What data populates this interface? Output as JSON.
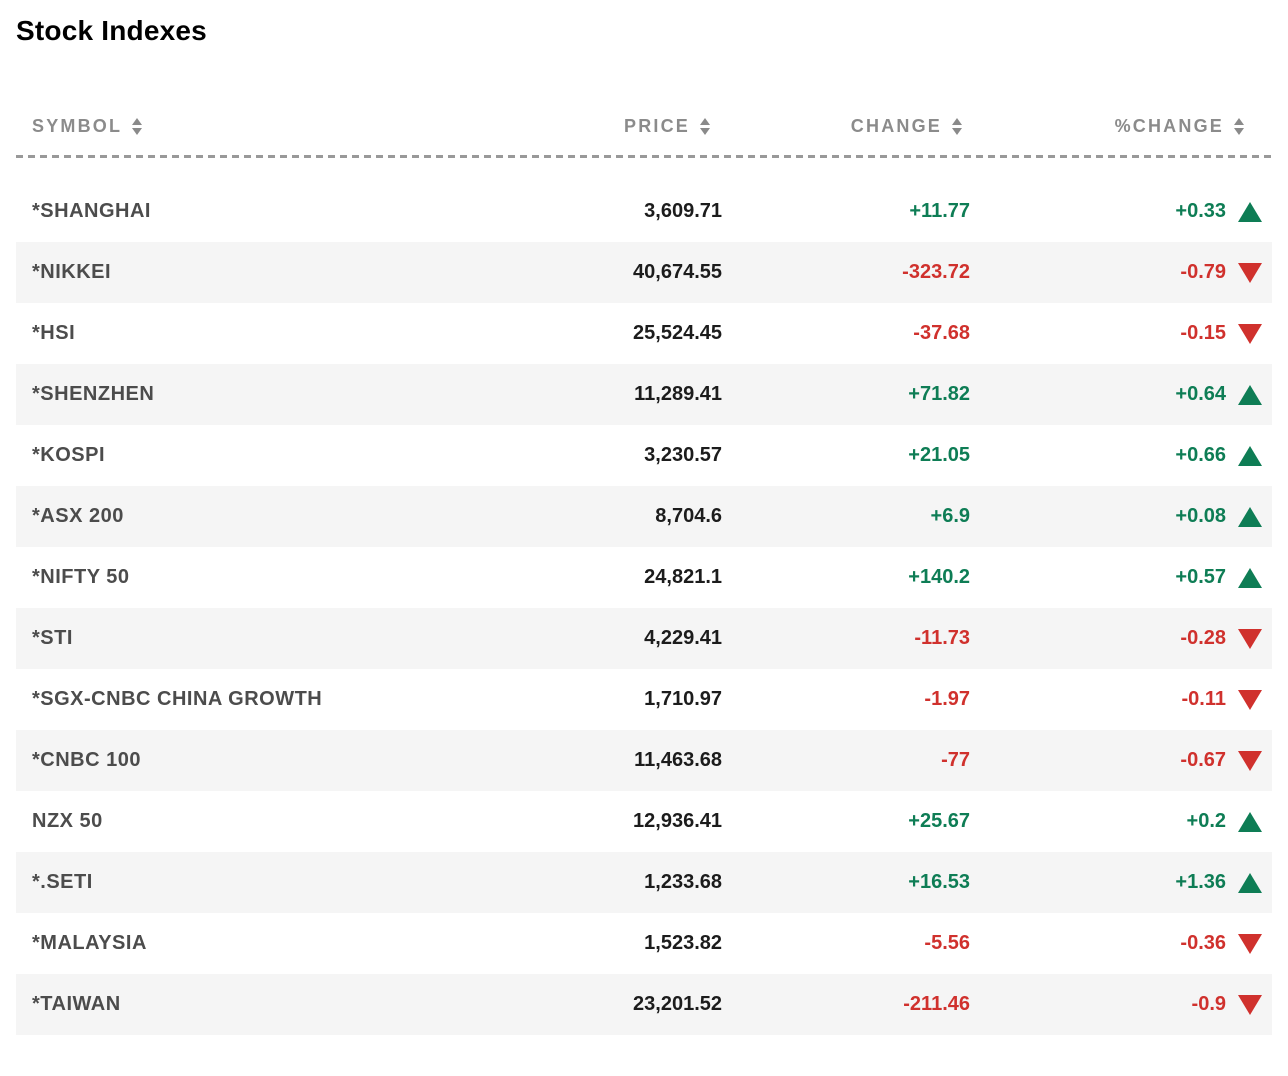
{
  "title": "Stock Indexes",
  "colors": {
    "positive": "#0e7d55",
    "negative": "#d0312d",
    "header_text": "#8b8b8b",
    "symbol_text": "#4c4c4c",
    "price_text": "#1c1c1c",
    "alt_row_bg": "#f5f5f5",
    "divider": "#999999"
  },
  "table": {
    "columns": [
      {
        "label": "SYMBOL"
      },
      {
        "label": "PRICE"
      },
      {
        "label": "CHANGE"
      },
      {
        "label": "%CHANGE"
      }
    ],
    "rows": [
      {
        "symbol": "*SHANGHAI",
        "price": "3,609.71",
        "change": "+11.77",
        "pct_change": "+0.33",
        "direction": "up"
      },
      {
        "symbol": "*NIKKEI",
        "price": "40,674.55",
        "change": "-323.72",
        "pct_change": "-0.79",
        "direction": "down"
      },
      {
        "symbol": "*HSI",
        "price": "25,524.45",
        "change": "-37.68",
        "pct_change": "-0.15",
        "direction": "down"
      },
      {
        "symbol": "*SHENZHEN",
        "price": "11,289.41",
        "change": "+71.82",
        "pct_change": "+0.64",
        "direction": "up"
      },
      {
        "symbol": "*KOSPI",
        "price": "3,230.57",
        "change": "+21.05",
        "pct_change": "+0.66",
        "direction": "up"
      },
      {
        "symbol": "*ASX 200",
        "price": "8,704.6",
        "change": "+6.9",
        "pct_change": "+0.08",
        "direction": "up"
      },
      {
        "symbol": "*NIFTY 50",
        "price": "24,821.1",
        "change": "+140.2",
        "pct_change": "+0.57",
        "direction": "up"
      },
      {
        "symbol": "*STI",
        "price": "4,229.41",
        "change": "-11.73",
        "pct_change": "-0.28",
        "direction": "down"
      },
      {
        "symbol": "*SGX-CNBC CHINA GROWTH",
        "price": "1,710.97",
        "change": "-1.97",
        "pct_change": "-0.11",
        "direction": "down"
      },
      {
        "symbol": "*CNBC 100",
        "price": "11,463.68",
        "change": "-77",
        "pct_change": "-0.67",
        "direction": "down"
      },
      {
        "symbol": "NZX 50",
        "price": "12,936.41",
        "change": "+25.67",
        "pct_change": "+0.2",
        "direction": "up"
      },
      {
        "symbol": "*.SETI",
        "price": "1,233.68",
        "change": "+16.53",
        "pct_change": "+1.36",
        "direction": "up"
      },
      {
        "symbol": "*MALAYSIA",
        "price": "1,523.82",
        "change": "-5.56",
        "pct_change": "-0.36",
        "direction": "down"
      },
      {
        "symbol": "*TAIWAN",
        "price": "23,201.52",
        "change": "-211.46",
        "pct_change": "-0.9",
        "direction": "down"
      }
    ]
  }
}
